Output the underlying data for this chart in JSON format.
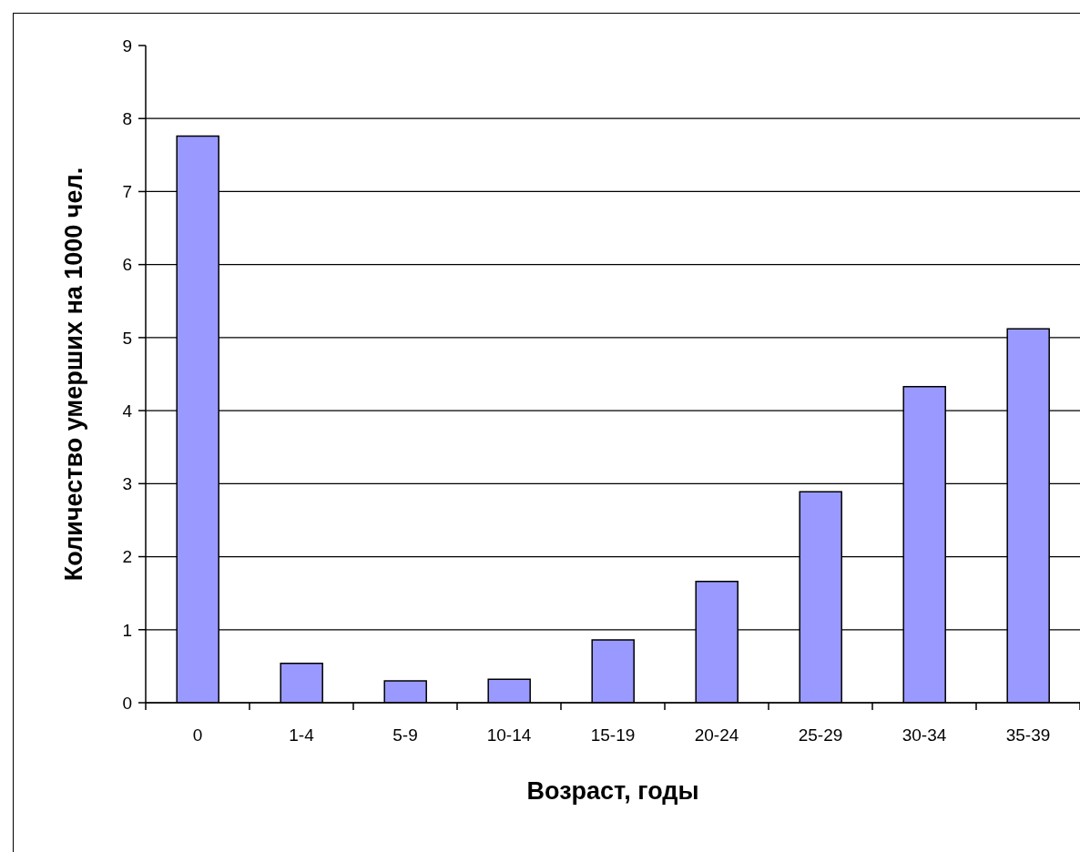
{
  "chart_data": {
    "type": "bar",
    "xlabel": "Возраст, годы",
    "ylabel": "Количество умерших на 1000 чел.",
    "categories": [
      "0",
      "1-4",
      "5-9",
      "10-14",
      "15-19",
      "20-24",
      "25-29",
      "30-34",
      "35-39"
    ],
    "values": [
      7.76,
      0.54,
      0.3,
      0.32,
      0.86,
      1.66,
      2.89,
      4.33,
      5.12
    ],
    "color": "#9999ff",
    "ylim": [
      0,
      9
    ],
    "yticks": [
      0,
      1,
      2,
      3,
      4,
      5,
      6,
      7,
      8,
      9
    ],
    "grid": "y"
  }
}
